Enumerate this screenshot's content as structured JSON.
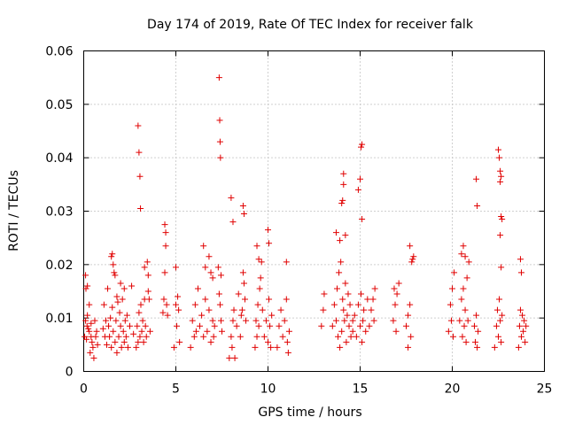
{
  "chart_data": {
    "type": "scatter",
    "title": "Day 174 of 2019, Rate Of TEC Index for receiver falk",
    "xlabel": "GPS time / hours",
    "ylabel": "ROTI / TECUs",
    "xlim": [
      0,
      25
    ],
    "ylim": [
      0,
      0.06
    ],
    "xticks": [
      "0",
      "5",
      "10",
      "15",
      "20",
      "25"
    ],
    "yticks": [
      "0",
      "0.01",
      "0.02",
      "0.03",
      "0.04",
      "0.05",
      "0.06"
    ],
    "marker": "+",
    "color": "#e00000",
    "grid": true,
    "series": [
      {
        "name": "ROTI",
        "x": [
          0.05,
          0.1,
          0.12,
          0.15,
          0.18,
          0.2,
          0.25,
          0.3,
          0.35,
          0.4,
          0.45,
          0.5,
          0.55,
          0.6,
          0.65,
          0.7,
          0.75,
          0.1,
          0.2,
          0.3,
          0.4,
          1.05,
          1.1,
          1.15,
          1.2,
          1.25,
          1.3,
          1.35,
          1.4,
          1.45,
          1.5,
          1.55,
          1.6,
          1.65,
          1.7,
          1.75,
          1.8,
          1.85,
          1.9,
          1.95,
          2.0,
          2.05,
          2.1,
          2.15,
          2.2,
          2.25,
          2.3,
          2.35,
          2.4,
          2.5,
          2.6,
          2.7,
          1.5,
          1.55,
          1.6,
          1.7,
          1.8,
          2.0,
          2.2,
          2.85,
          2.9,
          2.95,
          3.0,
          3.05,
          3.1,
          3.15,
          3.2,
          3.25,
          3.3,
          3.35,
          3.4,
          3.5,
          3.6,
          2.95,
          3.0,
          3.05,
          3.08,
          3.3,
          3.45,
          3.5,
          3.55,
          4.3,
          4.35,
          4.4,
          4.45,
          4.5,
          4.55,
          4.4,
          4.45,
          4.9,
          5.0,
          5.05,
          5.1,
          5.15,
          5.2,
          5.0,
          5.8,
          5.9,
          6.0,
          6.05,
          6.1,
          6.2,
          6.3,
          6.4,
          6.5,
          6.6,
          6.7,
          6.8,
          6.9,
          7.0,
          7.05,
          7.1,
          6.5,
          6.6,
          6.8,
          6.9,
          7.0,
          7.3,
          7.35,
          7.4,
          7.45,
          7.5,
          7.35,
          7.38,
          7.4,
          7.42,
          7.45,
          7.9,
          8.0,
          8.05,
          8.1,
          8.15,
          8.2,
          8.3,
          8.4,
          8.5,
          8.55,
          8.6,
          8.65,
          8.7,
          8.75,
          8.8,
          8.0,
          8.1,
          8.65,
          8.7,
          9.3,
          9.35,
          9.4,
          9.45,
          9.5,
          9.55,
          9.6,
          9.65,
          9.7,
          9.8,
          9.9,
          10.0,
          10.05,
          10.1,
          10.15,
          10.2,
          9.4,
          9.5,
          10.0,
          10.05,
          10.5,
          10.6,
          10.7,
          10.8,
          10.9,
          11.0,
          11.05,
          11.1,
          11.15,
          11.0,
          12.9,
          13.0,
          13.05,
          13.5,
          13.6,
          13.7,
          13.75,
          13.8,
          13.85,
          13.9,
          13.95,
          14.0,
          14.05,
          14.1,
          14.15,
          14.2,
          14.25,
          14.3,
          14.35,
          14.4,
          14.45,
          14.5,
          14.6,
          13.7,
          13.9,
          14.0,
          14.05,
          14.1,
          14.1,
          14.2,
          14.6,
          14.7,
          14.8,
          14.9,
          15.0,
          15.05,
          15.1,
          15.15,
          15.2,
          15.3,
          15.4,
          15.5,
          14.9,
          15.0,
          15.05,
          15.1,
          15.1,
          15.6,
          15.7,
          15.75,
          15.8,
          16.8,
          16.85,
          16.9,
          16.95,
          17.0,
          17.1,
          17.5,
          17.6,
          17.7,
          17.75,
          17.8,
          17.85,
          17.9,
          17.6,
          17.7,
          19.8,
          19.9,
          19.95,
          20.0,
          20.05,
          20.1,
          20.4,
          20.5,
          20.55,
          20.6,
          20.65,
          20.7,
          20.75,
          20.8,
          20.85,
          20.9,
          20.5,
          20.6,
          20.7,
          21.2,
          21.25,
          21.3,
          21.35,
          21.4,
          21.3,
          21.35,
          22.3,
          22.4,
          22.45,
          22.5,
          22.55,
          22.6,
          22.65,
          22.7,
          22.5,
          22.55,
          22.6,
          22.65,
          22.6,
          22.65,
          22.7,
          22.6,
          22.65,
          23.6,
          23.65,
          23.7,
          23.75,
          23.8,
          23.85,
          23.9,
          23.95,
          24.0,
          23.7,
          23.75
        ],
        "y": [
          0.0065,
          0.0095,
          0.0155,
          0.006,
          0.0085,
          0.0105,
          0.008,
          0.0075,
          0.0035,
          0.009,
          0.0055,
          0.0045,
          0.0025,
          0.0095,
          0.0065,
          0.0075,
          0.005,
          0.018,
          0.016,
          0.0125,
          0.0065,
          0.008,
          0.0125,
          0.0065,
          0.0095,
          0.005,
          0.0155,
          0.0085,
          0.0065,
          0.01,
          0.0045,
          0.012,
          0.0075,
          0.0185,
          0.0055,
          0.0095,
          0.0035,
          0.013,
          0.0065,
          0.011,
          0.0085,
          0.0045,
          0.0135,
          0.0075,
          0.0055,
          0.0095,
          0.0065,
          0.0105,
          0.0045,
          0.0085,
          0.016,
          0.007,
          0.0215,
          0.022,
          0.02,
          0.018,
          0.014,
          0.0165,
          0.0155,
          0.0045,
          0.0085,
          0.0055,
          0.011,
          0.0065,
          0.0125,
          0.0075,
          0.0095,
          0.0055,
          0.0135,
          0.0085,
          0.0065,
          0.015,
          0.0075,
          0.046,
          0.041,
          0.0365,
          0.0305,
          0.0195,
          0.0205,
          0.018,
          0.0135,
          0.011,
          0.0135,
          0.0185,
          0.0235,
          0.0125,
          0.0105,
          0.0275,
          0.026,
          0.0045,
          0.0125,
          0.0085,
          0.014,
          0.0115,
          0.0055,
          0.0195,
          0.0045,
          0.0095,
          0.0065,
          0.0125,
          0.0075,
          0.0155,
          0.0085,
          0.0105,
          0.0065,
          0.0135,
          0.0075,
          0.0115,
          0.0055,
          0.0095,
          0.0065,
          0.0085,
          0.0235,
          0.0195,
          0.0215,
          0.0185,
          0.0175,
          0.0195,
          0.0145,
          0.0125,
          0.0095,
          0.0075,
          0.055,
          0.047,
          0.043,
          0.04,
          0.018,
          0.0025,
          0.0065,
          0.0045,
          0.0095,
          0.0115,
          0.0025,
          0.0085,
          0.0145,
          0.0065,
          0.0105,
          0.0115,
          0.0185,
          0.0165,
          0.0135,
          0.0095,
          0.0325,
          0.028,
          0.031,
          0.0295,
          0.0045,
          0.0095,
          0.0065,
          0.0125,
          0.0085,
          0.0155,
          0.0175,
          0.0205,
          0.0115,
          0.0065,
          0.0095,
          0.0055,
          0.0135,
          0.0085,
          0.0045,
          0.0105,
          0.0235,
          0.021,
          0.0265,
          0.024,
          0.0045,
          0.0085,
          0.0115,
          0.0065,
          0.0095,
          0.0135,
          0.0055,
          0.0035,
          0.0075,
          0.0205,
          0.0085,
          0.0115,
          0.0145,
          0.0085,
          0.0125,
          0.0095,
          0.0155,
          0.0065,
          0.0185,
          0.0045,
          0.0205,
          0.0075,
          0.0135,
          0.0115,
          0.0095,
          0.0165,
          0.0055,
          0.0105,
          0.0145,
          0.0085,
          0.0125,
          0.0065,
          0.0095,
          0.026,
          0.0245,
          0.0315,
          0.032,
          0.035,
          0.037,
          0.0255,
          0.0075,
          0.0105,
          0.0065,
          0.0125,
          0.0085,
          0.0145,
          0.0055,
          0.0095,
          0.0115,
          0.0075,
          0.0135,
          0.0085,
          0.034,
          0.036,
          0.042,
          0.0425,
          0.0285,
          0.0115,
          0.0135,
          0.0095,
          0.0155,
          0.0095,
          0.0155,
          0.0125,
          0.0075,
          0.0145,
          0.0165,
          0.0085,
          0.0045,
          0.0125,
          0.0065,
          0.0205,
          0.021,
          0.0215,
          0.0105,
          0.0235,
          0.0075,
          0.0125,
          0.0095,
          0.0155,
          0.0065,
          0.0185,
          0.0095,
          0.0135,
          0.0065,
          0.0155,
          0.0085,
          0.0115,
          0.0055,
          0.0175,
          0.0095,
          0.0205,
          0.022,
          0.0235,
          0.0215,
          0.0085,
          0.0055,
          0.0105,
          0.0045,
          0.0075,
          0.036,
          0.031,
          0.0045,
          0.0085,
          0.0115,
          0.0065,
          0.0135,
          0.0095,
          0.0055,
          0.0105,
          0.0415,
          0.04,
          0.0375,
          0.0365,
          0.0355,
          0.029,
          0.0285,
          0.0255,
          0.0195,
          0.0045,
          0.0085,
          0.0115,
          0.0065,
          0.0105,
          0.0075,
          0.0095,
          0.0055,
          0.0085,
          0.021,
          0.0185
        ]
      }
    ]
  }
}
